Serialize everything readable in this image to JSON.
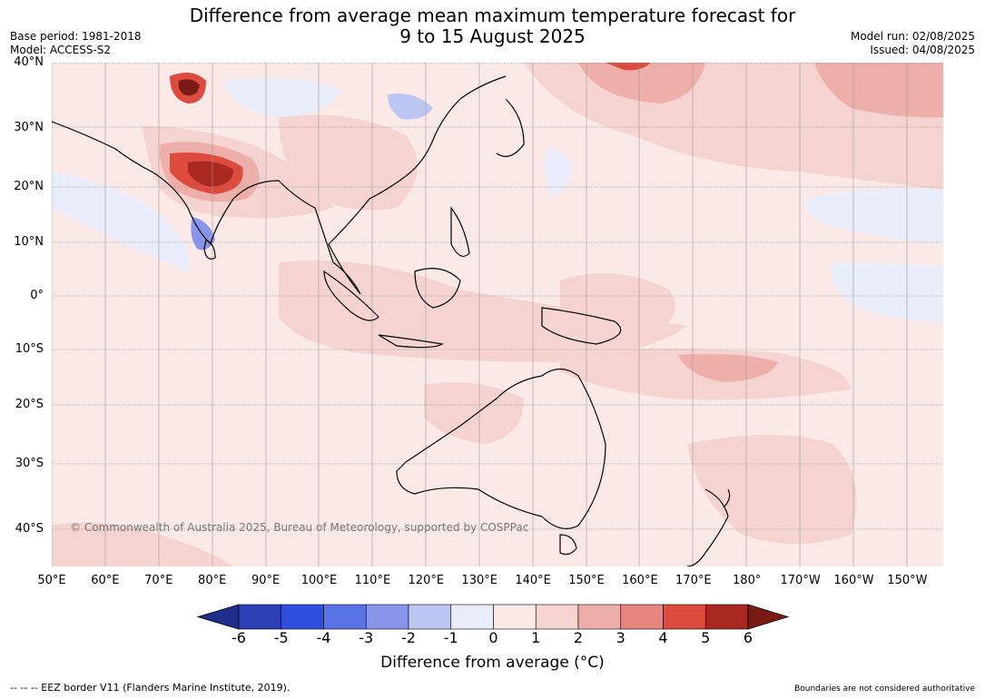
{
  "title": {
    "line1": "Difference from average mean maximum temperature forecast for",
    "line2": "9 to 15 August 2025"
  },
  "meta_left": {
    "base_period": "Base period: 1981-2018",
    "model": "Model: ACCESS-S2"
  },
  "meta_right": {
    "model_run": "Model run: 02/08/2025",
    "issued": "Issued: 04/08/2025"
  },
  "lat_labels": [
    "40°N",
    "30°N",
    "20°N",
    "10°N",
    "0°",
    "10°S",
    "20°S",
    "30°S",
    "40°S"
  ],
  "lon_labels": [
    "50°E",
    "60°E",
    "70°E",
    "80°E",
    "90°E",
    "100°E",
    "110°E",
    "120°E",
    "130°E",
    "140°E",
    "150°E",
    "160°E",
    "170°E",
    "180°",
    "170°W",
    "160°W",
    "150°W"
  ],
  "colorbar": {
    "ticks": [
      "-6",
      "-5",
      "-4",
      "-3",
      "-2",
      "-1",
      "0",
      "1",
      "2",
      "3",
      "4",
      "5",
      "6"
    ],
    "colors": [
      "#1f2f8c",
      "#2c3fb4",
      "#2f4fe0",
      "#5a73e6",
      "#8796ea",
      "#bcc6f3",
      "#e8ecfb",
      "#fbe9e7",
      "#f5d3d0",
      "#eeaeaa",
      "#e78580",
      "#dd4a3e",
      "#a82822",
      "#7a1a15"
    ],
    "title": "Difference from average (°C)"
  },
  "copyright": "© Commonwealth of Australia 2025, Bureau of Meteorology, supported by COSPPac",
  "eez_note": "--  --  -- EEZ border V11 (Flanders Marine Institute, 2019).",
  "boundary_note": "Boundaries are not considered authoritative"
}
